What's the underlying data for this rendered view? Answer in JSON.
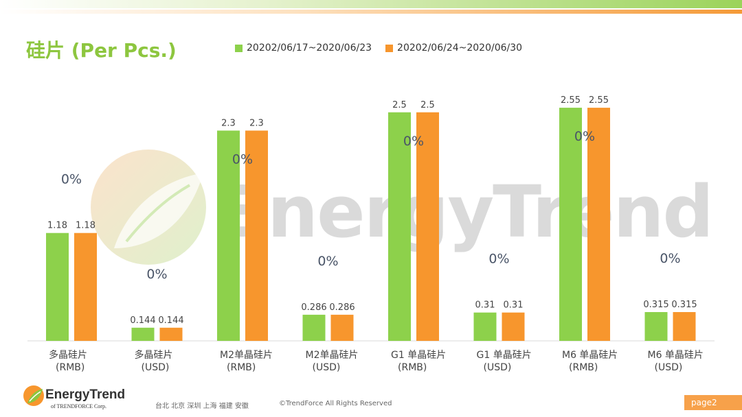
{
  "header": {
    "title": "硅片 (Per Pcs.)"
  },
  "legend": [
    {
      "label": "20202/06/17~2020/06/23",
      "color": "#8dd14b"
    },
    {
      "label": "20202/06/24~2020/06/30",
      "color": "#f7962d"
    }
  ],
  "watermark": {
    "text": "EnergyTrend"
  },
  "chart_data": {
    "type": "bar",
    "categories": [
      [
        "多晶硅片",
        "(RMB)"
      ],
      [
        "多晶硅片",
        "(USD)"
      ],
      [
        "M2单晶硅片",
        "(RMB)"
      ],
      [
        "M2单晶硅片",
        "(USD)"
      ],
      [
        "G1 单晶硅片",
        "(RMB)"
      ],
      [
        "G1 单晶硅片",
        "(USD)"
      ],
      [
        "M6 单晶硅片",
        "(RMB)"
      ],
      [
        "M6 单晶硅片",
        "(USD)"
      ]
    ],
    "series": [
      {
        "name": "20202/06/17~2020/06/23",
        "color": "#8dd14b",
        "values": [
          1.18,
          0.144,
          2.3,
          0.286,
          2.5,
          0.31,
          2.55,
          0.315
        ],
        "labels": [
          "1.18",
          "0.144",
          "2.3",
          "0.286",
          "2.5",
          "0.31",
          "2.55",
          "0.315"
        ]
      },
      {
        "name": "20202/06/24~2020/06/30",
        "color": "#f7962d",
        "values": [
          1.18,
          0.144,
          2.3,
          0.286,
          2.5,
          0.31,
          2.55,
          0.315
        ],
        "labels": [
          "1.18",
          "0.144",
          "2.3",
          "0.286",
          "2.5",
          "0.31",
          "2.55",
          "0.315"
        ]
      }
    ],
    "change_labels": [
      "0%",
      "0%",
      "0%",
      "0%",
      "0%",
      "0%",
      "0%",
      "0%"
    ],
    "grid": false,
    "legend_position": "top"
  },
  "footer": {
    "brand": "EnergyTrend",
    "sub": "of TRENDFORCE Corp.",
    "cities": "台北 北京 深圳 上海 福建 安徽",
    "copyright": "©TrendForce All Rights Reserved",
    "page": "page2"
  }
}
